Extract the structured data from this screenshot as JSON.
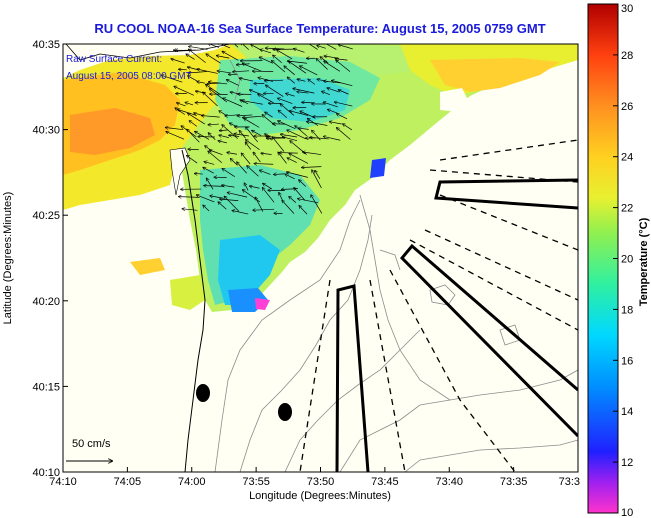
{
  "title": "RU COOL  NOAA-16  Sea Surface Temperature:  August 15, 2005 0759 GMT",
  "annotation": {
    "line1": "Raw Surface Current:",
    "line2": "August 15, 2005 08:00 GMT"
  },
  "scale_label": "50 cm/s",
  "colors": {
    "title": "#1a1adb",
    "coast": "#000000",
    "contour": "#8c8c8c"
  },
  "chart_data": {
    "type": "heatmap",
    "title": "RU COOL  NOAA-16  Sea Surface Temperature:  August 15, 2005 0759 GMT",
    "xlabel": "Longitude (Degrees:Minutes)",
    "ylabel": "Latitude (Degrees:Minutes)",
    "x_ticks": [
      "74:10",
      "74:05",
      "74:00",
      "73:55",
      "73:50",
      "73:45",
      "73:40",
      "73:35",
      "73:3"
    ],
    "y_ticks": [
      "40:35",
      "40:30",
      "40:25",
      "40:20",
      "40:15",
      "40:10"
    ],
    "xlim_min": [
      -10,
      30
    ],
    "ylim_min": [
      10,
      35
    ],
    "colorbar": {
      "label": "Temperature (°C)",
      "ticks": [
        "30",
        "28",
        "26",
        "24",
        "22",
        "20",
        "18",
        "16",
        "14",
        "12",
        "10"
      ],
      "range": [
        10,
        30
      ]
    }
  }
}
